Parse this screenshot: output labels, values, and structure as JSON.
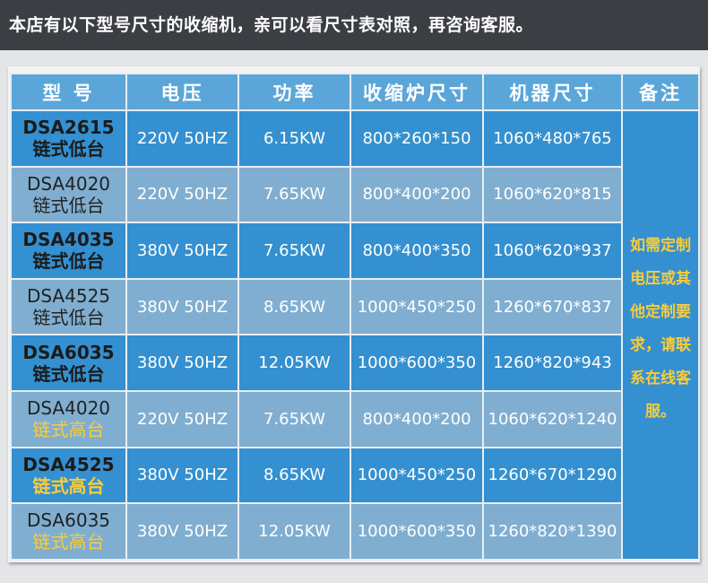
{
  "banner": "本店有以下型号尺寸的收缩机，亲可以看尺寸表对照，再咨询客服。",
  "headers": [
    "型 号",
    "电压",
    "功率",
    "收缩炉尺寸",
    "机器尺寸",
    "备注"
  ],
  "rows": [
    {
      "model": "DSA2615",
      "type": "链式低台",
      "voltage": "220V 50HZ",
      "power": "6.15KW",
      "furnace": "800*260*150",
      "machine": "1060*480*765"
    },
    {
      "model": "DSA4020",
      "type": "链式低台",
      "voltage": "220V 50HZ",
      "power": "7.65KW",
      "furnace": "800*400*200",
      "machine": "1060*620*815"
    },
    {
      "model": "DSA4035",
      "type": "链式低台",
      "voltage": "380V 50HZ",
      "power": "7.65KW",
      "furnace": "800*400*350",
      "machine": "1060*620*937"
    },
    {
      "model": "DSA4525",
      "type": "链式低台",
      "voltage": "380V 50HZ",
      "power": "8.65KW",
      "furnace": "1000*450*250",
      "machine": "1260*670*837"
    },
    {
      "model": "DSA6035",
      "type": "链式低台",
      "voltage": "380V 50HZ",
      "power": "12.05KW",
      "furnace": "1000*600*350",
      "machine": "1260*820*943"
    },
    {
      "model": "DSA4020",
      "type": "链式高台",
      "voltage": "220V 50HZ",
      "power": "7.65KW",
      "furnace": "800*400*200",
      "machine": "1060*620*1240"
    },
    {
      "model": "DSA4525",
      "type": "链式高台",
      "voltage": "380V 50HZ",
      "power": "8.65KW",
      "furnace": "1000*450*250",
      "machine": "1260*670*1290"
    },
    {
      "model": "DSA6035",
      "type": "链式高台",
      "voltage": "380V 50HZ",
      "power": "12.05KW",
      "furnace": "1000*600*350",
      "machine": "1260*820*1390"
    }
  ],
  "note": "如需定制电压或其他定制要求，请联系在线客服。",
  "colors": {
    "header": "#5ba6d9",
    "row_dark": "#3490d0",
    "row_light": "#80aed0",
    "highlight": "#f7cc3c",
    "banner_bg": "#3b3e43"
  }
}
